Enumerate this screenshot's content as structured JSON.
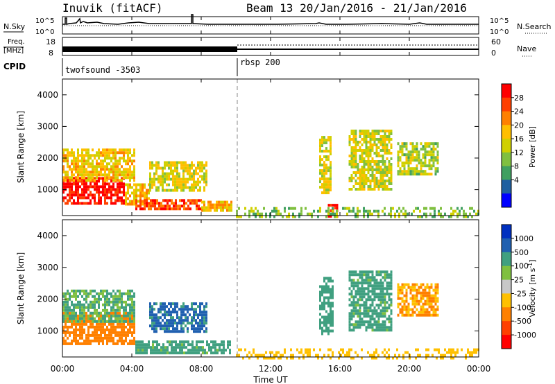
{
  "header": {
    "title": "Inuvik (fitACF)",
    "beam_info": "Beam 13  20/Jan/2016 - 21/Jan/2016"
  },
  "strip1": {
    "left_label": "N.Sky",
    "right_label": "N.Search",
    "left_ticks": [
      "10^5",
      "10^0"
    ],
    "right_ticks": [
      "10^5",
      "10^0"
    ]
  },
  "strip2": {
    "left_label_line1": "Freq.",
    "left_label_line2": "[MHz]",
    "left_ticks": [
      "18",
      "8"
    ],
    "right_label": "Nave",
    "right_ticks": [
      "60",
      "0"
    ]
  },
  "cpid": {
    "label": "CPID",
    "segments": [
      {
        "name": "twofsound -3503",
        "start_hour": 0,
        "end_hour": 10
      },
      {
        "name": "rbsp 200",
        "start_hour": 10,
        "end_hour": 24
      }
    ]
  },
  "power_panel": {
    "ylabel": "Slant Range [km]",
    "yticks": [
      "4000",
      "3000",
      "2000",
      "1000"
    ],
    "colorbar_label": "Power [dB]",
    "colorbar_ticks": [
      "28",
      "24",
      "20",
      "16",
      "12",
      "8",
      "4"
    ],
    "colorbar_colors": [
      "#ff0000",
      "#ff4000",
      "#ff8000",
      "#ffbf00",
      "#d0d000",
      "#80c040",
      "#40a060",
      "#2060a0",
      "#0000ff"
    ]
  },
  "velocity_panel": {
    "ylabel": "Slant Range [km]",
    "yticks": [
      "4000",
      "3000",
      "2000",
      "1000"
    ],
    "colorbar_label": "Velocity [m s-1]",
    "colorbar_label_main": "Velocity [m s",
    "colorbar_label_exp": "-1",
    "colorbar_label_tail": "]",
    "colorbar_ticks": [
      "1000",
      "500",
      "100",
      "25",
      "-25",
      "-100",
      "-500",
      "-1000"
    ],
    "colorbar_colors": [
      "#0030c0",
      "#2060b0",
      "#40a080",
      "#80c040",
      "#c8c8c8",
      "#ffc000",
      "#ff8000",
      "#ff4000",
      "#ff0000"
    ]
  },
  "x_axis": {
    "label": "Time UT",
    "ticks": [
      "00:00",
      "04:00",
      "08:00",
      "12:00",
      "16:00",
      "20:00",
      "00:00"
    ]
  },
  "chart_data": {
    "type": "heatmap",
    "title": "Inuvik (fitACF)",
    "subtitle": "Beam 13  20/Jan/2016 - 21/Jan/2016",
    "xlabel": "Time UT",
    "ylabel": "Slant Range [km]",
    "x_range_hours": [
      0,
      24
    ],
    "y_range_km": [
      180,
      4500
    ],
    "panels": [
      {
        "name": "Power [dB]",
        "colorbar_range": [
          0,
          32
        ],
        "regions": [
          {
            "t0": 0.0,
            "t1": 3.6,
            "r0": 600,
            "r1": 1400,
            "value": 30
          },
          {
            "t0": 0.0,
            "t1": 4.2,
            "r0": 1300,
            "r1": 2300,
            "value": 17
          },
          {
            "t0": 3.6,
            "t1": 5.0,
            "r0": 500,
            "r1": 1200,
            "value": 18
          },
          {
            "t0": 4.2,
            "t1": 8.0,
            "r0": 350,
            "r1": 700,
            "value": 26
          },
          {
            "t0": 8.0,
            "t1": 9.7,
            "r0": 350,
            "r1": 650,
            "value": 19
          },
          {
            "t0": 5.0,
            "t1": 8.3,
            "r0": 1000,
            "r1": 1900,
            "value": 15
          },
          {
            "t0": 14.8,
            "t1": 15.5,
            "r0": 900,
            "r1": 2700,
            "value": 14
          },
          {
            "t0": 15.3,
            "t1": 15.8,
            "r0": 180,
            "r1": 550,
            "value": 30
          },
          {
            "t0": 16.5,
            "t1": 19.0,
            "r0": 1000,
            "r1": 2900,
            "value": 14
          },
          {
            "t0": 19.3,
            "t1": 21.6,
            "r0": 1500,
            "r1": 2500,
            "value": 12
          },
          {
            "t0": 10.0,
            "t1": 24.0,
            "r0": 180,
            "r1": 450,
            "value": 10
          }
        ]
      },
      {
        "name": "Velocity [m s-1]",
        "colorbar_ticks": [
          1000,
          500,
          100,
          25,
          -25,
          -100,
          -500,
          -1000
        ],
        "regions": [
          {
            "t0": 0.0,
            "t1": 4.2,
            "r0": 600,
            "r1": 1600,
            "value": -300
          },
          {
            "t0": 0.0,
            "t1": 4.2,
            "r0": 1300,
            "r1": 2300,
            "value": 100
          },
          {
            "t0": 4.2,
            "t1": 9.7,
            "r0": 350,
            "r1": 700,
            "value": 150
          },
          {
            "t0": 5.0,
            "t1": 8.3,
            "r0": 1000,
            "r1": 1900,
            "value": 600
          },
          {
            "t0": 14.8,
            "t1": 15.6,
            "r0": 900,
            "r1": 2700,
            "value": 200
          },
          {
            "t0": 16.5,
            "t1": 19.0,
            "r0": 1000,
            "r1": 2900,
            "value": 150
          },
          {
            "t0": 19.3,
            "t1": 21.6,
            "r0": 1500,
            "r1": 2500,
            "value": -100
          },
          {
            "t0": 10.0,
            "t1": 24.0,
            "r0": 180,
            "r1": 450,
            "value": -60
          }
        ]
      }
    ]
  }
}
